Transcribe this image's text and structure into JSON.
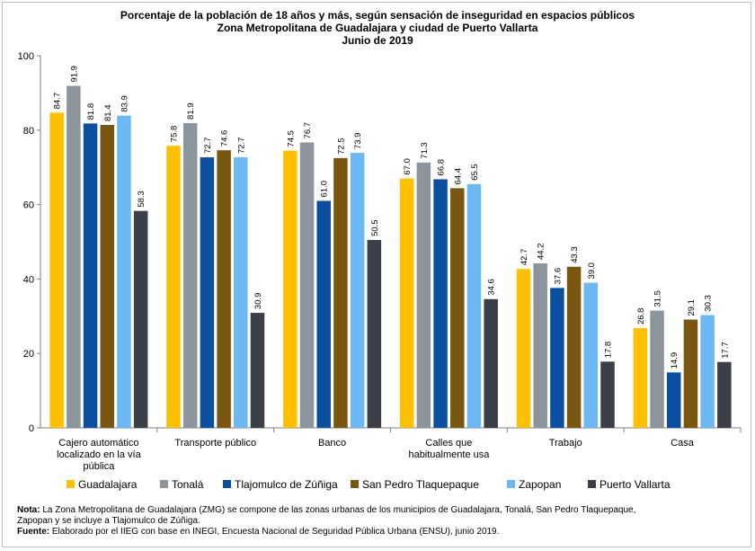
{
  "chart_data": {
    "type": "bar",
    "title_lines": [
      "Porcentaje de la población de 18 años y más, según sensación de inseguridad en espacios públicos",
      "Zona Metropolitana de Guadalajara y ciudad de Puerto Vallarta",
      "Junio de 2019"
    ],
    "categories": [
      [
        "Cajero automático",
        "localizado en la vía",
        "pública"
      ],
      [
        "Transporte público"
      ],
      [
        "Banco"
      ],
      [
        "Calles que",
        "habitualmente usa"
      ],
      [
        "Trabajo"
      ],
      [
        "Casa"
      ]
    ],
    "ylim": [
      0,
      100
    ],
    "yticks": [
      0,
      20,
      40,
      60,
      80,
      100
    ],
    "value_labels": [
      [
        "84.7",
        "91.9",
        "81.8",
        "81.4",
        "83.9",
        "58.3"
      ],
      [
        "75.8",
        "81.9",
        "72.7",
        "74.6",
        "72.7",
        "30.9"
      ],
      [
        "74.5",
        "76.7",
        "61.0",
        "72.5",
        "73.9",
        "50.5"
      ],
      [
        "67.0",
        "71.3",
        "66.8",
        "64.4",
        "65.5",
        "34.6"
      ],
      [
        "42.7",
        "44.2",
        "37.6",
        "43.3",
        "39.0",
        "17.8"
      ],
      [
        "26.8",
        "31.5",
        "14.9",
        "29.1",
        "30.3",
        "17.7"
      ]
    ],
    "series": [
      {
        "name": "Guadalajara",
        "color": "#ffc000",
        "values": [
          84.7,
          75.8,
          74.5,
          67.0,
          42.7,
          26.8
        ]
      },
      {
        "name": "Tonalá",
        "color": "#8c959c",
        "values": [
          91.9,
          81.9,
          76.7,
          71.3,
          44.2,
          31.5
        ]
      },
      {
        "name": "Tlajomulco de Zúñiga",
        "color": "#0b4fa0",
        "values": [
          81.8,
          72.7,
          61.0,
          66.8,
          37.6,
          14.9
        ]
      },
      {
        "name": "San Pedro Tlaquepaque",
        "color": "#7a5710",
        "values": [
          81.4,
          74.6,
          72.5,
          64.4,
          43.3,
          29.1
        ]
      },
      {
        "name": "Zapopan",
        "color": "#6cb8f2",
        "values": [
          83.9,
          72.7,
          73.9,
          65.5,
          39.0,
          30.3
        ]
      },
      {
        "name": "Puerto Vallarta",
        "color": "#3b3f47",
        "values": [
          58.3,
          30.9,
          50.5,
          34.6,
          17.8,
          17.7
        ]
      }
    ],
    "legend_position": "bottom",
    "grid": false
  },
  "notes": {
    "nota_label": "Nota:",
    "nota_line1": "La Zona Metropolitana de Guadalajara (ZMG) se compone de las zonas urbanas de los municipios de Guadalajara, Tonalá, San Pedro Tlaquepaque,",
    "nota_line2": "Zapopan y se incluye a Tlajomulco de Zúñiga.",
    "fuente_label": "Fuente:",
    "fuente_text": "Elaborado por el IIEG con base en INEGI, Encuesta Nacional de Seguridad Pública Urbana (ENSU), junio 2019."
  }
}
